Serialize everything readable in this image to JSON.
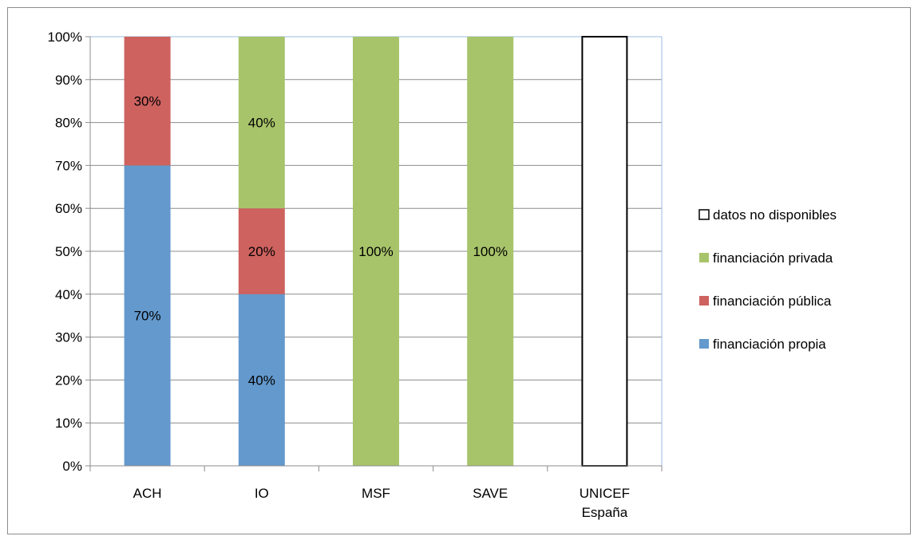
{
  "chart_data": {
    "type": "bar",
    "stacked": true,
    "percent": true,
    "categories": [
      "ACH",
      "IO",
      "MSF",
      "SAVE",
      "UNICEF España"
    ],
    "ylim": [
      0,
      100
    ],
    "y_ticks": [
      "0%",
      "10%",
      "20%",
      "30%",
      "40%",
      "50%",
      "60%",
      "70%",
      "80%",
      "90%",
      "100%"
    ],
    "grid": true,
    "legend_position": "right",
    "series": [
      {
        "name": "financiación propia",
        "color": "#6399cd",
        "values": [
          70,
          40,
          0,
          0,
          0
        ],
        "labels": [
          "70%",
          "40%",
          "",
          "",
          ""
        ]
      },
      {
        "name": "financiación pública",
        "color": "#cd625f",
        "values": [
          30,
          20,
          0,
          0,
          0
        ],
        "labels": [
          "30%",
          "20%",
          "",
          "",
          ""
        ]
      },
      {
        "name": "financiación privada",
        "color": "#a8c46a",
        "values": [
          0,
          40,
          100,
          100,
          0
        ],
        "labels": [
          "",
          "40%",
          "100%",
          "100%",
          ""
        ]
      },
      {
        "name": "datos no disponibles",
        "color": "#ffffff",
        "stroke": "#000000",
        "values": [
          0,
          0,
          0,
          0,
          100
        ],
        "labels": [
          "",
          "",
          "",
          "",
          ""
        ]
      }
    ],
    "legend_order": [
      "datos no disponibles",
      "financiación privada",
      "financiación pública",
      "financiación propia"
    ]
  }
}
